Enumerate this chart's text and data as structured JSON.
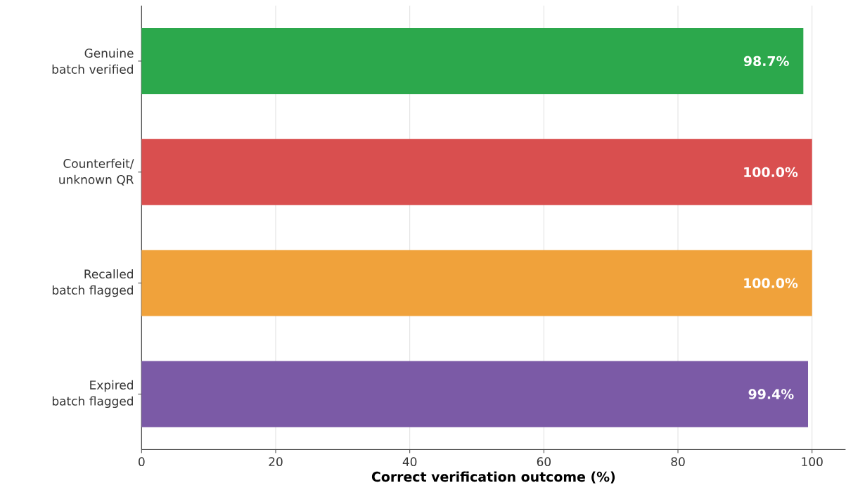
{
  "chart_data": {
    "type": "bar",
    "orientation": "horizontal",
    "xlabel": "Correct verification outcome (%)",
    "categories": [
      "Genuine batch verified",
      "Counterfeit/ unknown QR",
      "Recalled batch flagged",
      "Expired batch flagged"
    ],
    "values": [
      98.7,
      100.0,
      100.0,
      99.4
    ],
    "colors": [
      "#2ca84c",
      "#d94f4f",
      "#f0a23b",
      "#7b5aa6"
    ],
    "value_labels": [
      "98.7%",
      "100.0%",
      "100.0%",
      "99.4%"
    ],
    "xlim": [
      0,
      105
    ],
    "xticks": [
      0,
      20,
      40,
      60,
      80,
      100
    ],
    "grid": "x"
  }
}
